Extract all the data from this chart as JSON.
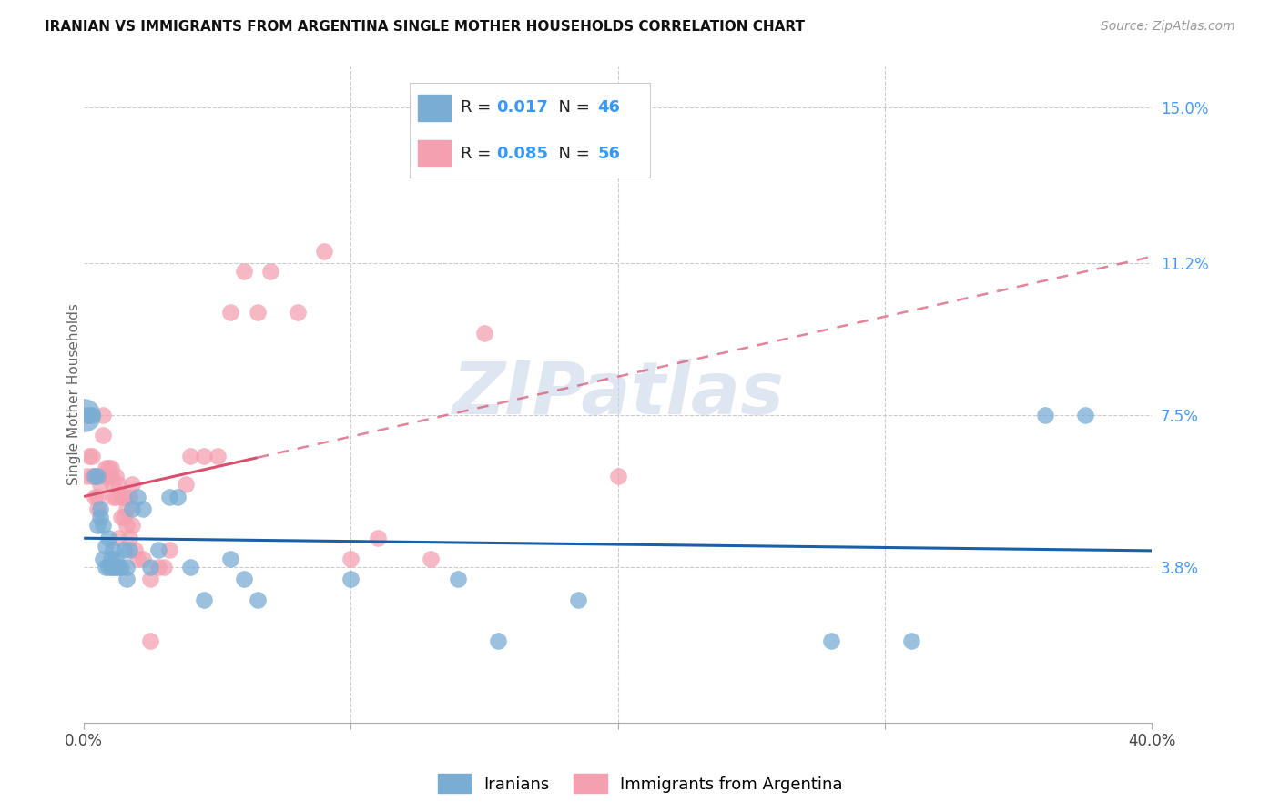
{
  "title": "IRANIAN VS IMMIGRANTS FROM ARGENTINA SINGLE MOTHER HOUSEHOLDS CORRELATION CHART",
  "source": "Source: ZipAtlas.com",
  "ylabel": "Single Mother Households",
  "watermark": "ZIPatlas",
  "xlim": [
    0.0,
    0.4
  ],
  "ylim": [
    0.0,
    0.16
  ],
  "ytick_positions": [
    0.038,
    0.075,
    0.112,
    0.15
  ],
  "ytick_labels": [
    "3.8%",
    "7.5%",
    "11.2%",
    "15.0%"
  ],
  "iranian_R": 0.017,
  "iranian_N": 46,
  "argentina_R": 0.085,
  "argentina_N": 56,
  "iranian_color": "#7aadd4",
  "argentina_color": "#f4a0b0",
  "iranian_line_color": "#1a5fa8",
  "argentina_line_color": "#d94f6e",
  "legend_label1": "Iranians",
  "legend_label2": "Immigrants from Argentina",
  "iranians_x": [
    0.001,
    0.002,
    0.003,
    0.004,
    0.005,
    0.005,
    0.006,
    0.006,
    0.007,
    0.007,
    0.008,
    0.008,
    0.009,
    0.009,
    0.01,
    0.01,
    0.011,
    0.011,
    0.012,
    0.012,
    0.013,
    0.014,
    0.015,
    0.016,
    0.016,
    0.017,
    0.018,
    0.02,
    0.022,
    0.025,
    0.028,
    0.032,
    0.035,
    0.04,
    0.045,
    0.055,
    0.06,
    0.065,
    0.1,
    0.14,
    0.155,
    0.185,
    0.28,
    0.31,
    0.36,
    0.375
  ],
  "iranians_y": [
    0.075,
    0.075,
    0.075,
    0.06,
    0.06,
    0.048,
    0.05,
    0.052,
    0.048,
    0.04,
    0.043,
    0.038,
    0.038,
    0.045,
    0.04,
    0.038,
    0.038,
    0.042,
    0.04,
    0.038,
    0.038,
    0.038,
    0.042,
    0.035,
    0.038,
    0.042,
    0.052,
    0.055,
    0.052,
    0.038,
    0.042,
    0.055,
    0.055,
    0.038,
    0.03,
    0.04,
    0.035,
    0.03,
    0.035,
    0.035,
    0.02,
    0.03,
    0.02,
    0.02,
    0.075,
    0.075
  ],
  "argentina_x": [
    0.001,
    0.002,
    0.003,
    0.003,
    0.004,
    0.004,
    0.005,
    0.005,
    0.006,
    0.007,
    0.007,
    0.008,
    0.008,
    0.009,
    0.009,
    0.01,
    0.01,
    0.011,
    0.011,
    0.012,
    0.012,
    0.013,
    0.013,
    0.014,
    0.014,
    0.015,
    0.015,
    0.016,
    0.016,
    0.017,
    0.017,
    0.018,
    0.018,
    0.019,
    0.02,
    0.022,
    0.025,
    0.028,
    0.03,
    0.032,
    0.038,
    0.04,
    0.045,
    0.05,
    0.055,
    0.06,
    0.065,
    0.07,
    0.08,
    0.09,
    0.1,
    0.11,
    0.13,
    0.15,
    0.2,
    0.025
  ],
  "argentina_y": [
    0.06,
    0.065,
    0.065,
    0.06,
    0.06,
    0.055,
    0.052,
    0.055,
    0.058,
    0.075,
    0.07,
    0.062,
    0.06,
    0.062,
    0.06,
    0.06,
    0.062,
    0.055,
    0.058,
    0.055,
    0.06,
    0.058,
    0.045,
    0.05,
    0.055,
    0.055,
    0.05,
    0.048,
    0.052,
    0.055,
    0.045,
    0.058,
    0.048,
    0.042,
    0.04,
    0.04,
    0.035,
    0.038,
    0.038,
    0.042,
    0.058,
    0.065,
    0.065,
    0.065,
    0.1,
    0.11,
    0.1,
    0.11,
    0.1,
    0.115,
    0.04,
    0.045,
    0.04,
    0.095,
    0.06,
    0.02
  ]
}
